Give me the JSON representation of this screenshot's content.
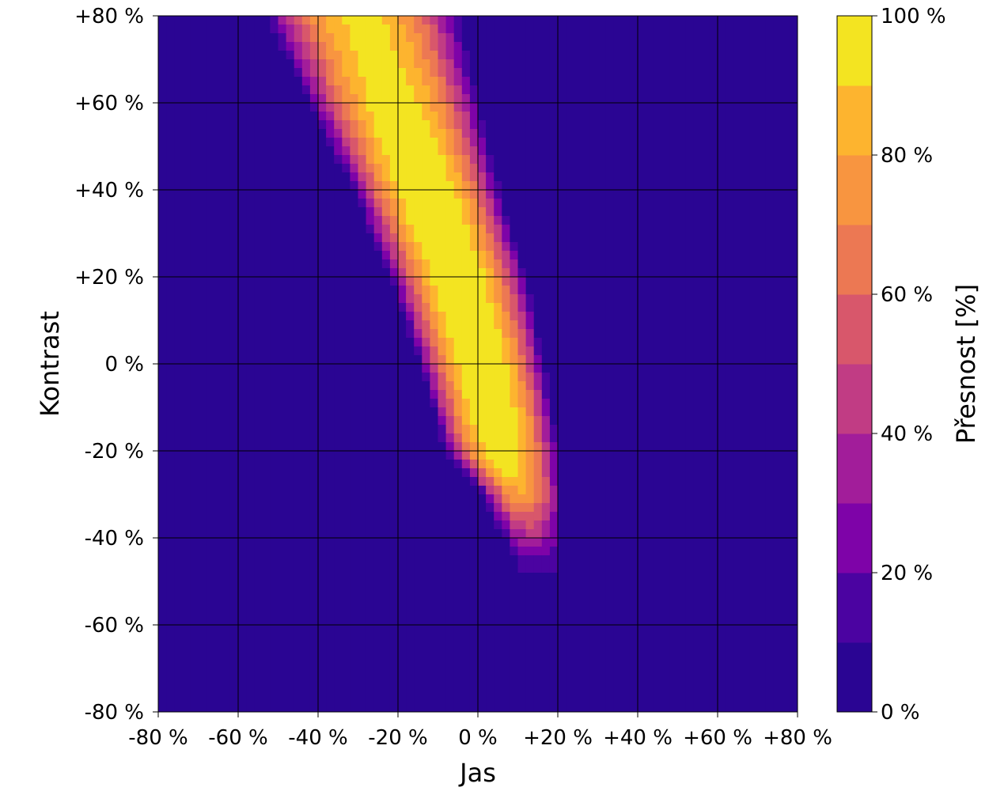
{
  "chart_data": {
    "type": "heatmap",
    "subtype": "filled-contour",
    "title": "",
    "xlabel": "Jas",
    "ylabel": "Kontrast",
    "colorbar_label": "Přesnost [%]",
    "xlim": [
      -80,
      80
    ],
    "ylim": [
      -80,
      80
    ],
    "x_ticks": [
      -80,
      -60,
      -40,
      -20,
      0,
      20,
      40,
      60,
      80
    ],
    "x_tick_labels": [
      "-80 %",
      "-60 %",
      "-40 %",
      "-20 %",
      "0 %",
      "+20 %",
      "+40 %",
      "+60 %",
      "+80 %"
    ],
    "y_ticks": [
      -80,
      -60,
      -40,
      -20,
      0,
      20,
      40,
      60,
      80
    ],
    "y_tick_labels": [
      "-80 %",
      "-60 %",
      "-40 %",
      "-20 %",
      "0 %",
      "+20 %",
      "+40 %",
      "+60 %",
      "+80 %"
    ],
    "colorbar_ticks": [
      0,
      20,
      40,
      60,
      80,
      100
    ],
    "colorbar_tick_labels": [
      "0 %",
      "20 %",
      "40 %",
      "60 %",
      "80 %",
      "100 %"
    ],
    "levels": [
      0,
      10,
      20,
      30,
      40,
      50,
      60,
      70,
      80,
      90,
      100
    ],
    "colormap": "plasma",
    "level_colors": [
      "#2a0593",
      "#4b03a1",
      "#7e03a8",
      "#a21d9a",
      "#c13c84",
      "#d8576b",
      "#ec7853",
      "#f89540",
      "#fdb42f",
      "#f3e421"
    ],
    "grid": true,
    "grid_color": "#000000",
    "peak_ridge": [
      {
        "contrast": -45,
        "brightness": 15,
        "width": 5
      },
      {
        "contrast": -30,
        "brightness": 11,
        "width": 7
      },
      {
        "contrast": -20,
        "brightness": 6,
        "width": 10
      },
      {
        "contrast": 0,
        "brightness": 1,
        "width": 11
      },
      {
        "contrast": 20,
        "brightness": -5,
        "width": 12
      },
      {
        "contrast": 40,
        "brightness": -13,
        "width": 13
      },
      {
        "contrast": 60,
        "brightness": -21,
        "width": 15
      },
      {
        "contrast": 80,
        "brightness": -29,
        "width": 17
      }
    ],
    "peak_accuracy": [
      {
        "contrast": -45,
        "value": 18
      },
      {
        "contrast": -30,
        "value": 75
      },
      {
        "contrast": -25,
        "value": 88
      },
      {
        "contrast": -15,
        "value": 100
      },
      {
        "contrast": 0,
        "value": 100
      },
      {
        "contrast": 20,
        "value": 100
      },
      {
        "contrast": 40,
        "value": 100
      },
      {
        "contrast": 55,
        "value": 96
      },
      {
        "contrast": 70,
        "value": 91
      },
      {
        "contrast": 80,
        "value": 90
      }
    ]
  }
}
